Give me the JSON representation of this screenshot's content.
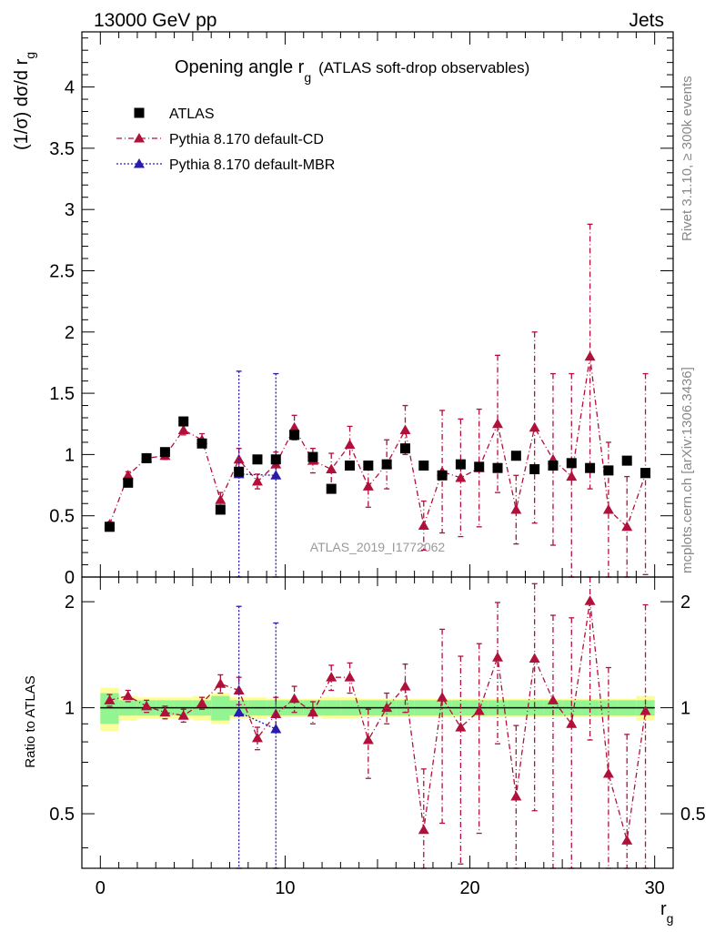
{
  "header": {
    "left": "13000 GeV pp",
    "right": "Jets"
  },
  "side_labels": {
    "rivet": "Rivet 3.1.10, ≥ 300k events",
    "mcplots": "mcplots.cern.ch [arXiv:1306.3436]"
  },
  "chart_data": [
    {
      "type": "scatter",
      "panel": "main",
      "title_main": "Opening angle r",
      "title_sub": "g",
      "title_extra": "(ATLAS soft-drop observables)",
      "ylabel_main": "(1/σ) dσ/d r",
      "ylabel_sub": "g",
      "watermark": "ATLAS_2019_I1772062",
      "xlim": [
        -1,
        31
      ],
      "ylim": [
        0,
        4.45
      ],
      "yticks": [
        0,
        0.5,
        1,
        1.5,
        2,
        2.5,
        3,
        3.5,
        4
      ],
      "ytick_labels": [
        "0",
        "0.5",
        "1",
        "1.5",
        "2",
        "2.5",
        "3",
        "3.5",
        "4"
      ],
      "legend": [
        {
          "label": "ATLAS",
          "marker": "square",
          "color": "#000000"
        },
        {
          "label": "Pythia 8.170 default-CD",
          "marker": "triangle",
          "color": "#b0103a"
        },
        {
          "label": "Pythia 8.170 default-MBR",
          "marker": "triangle",
          "color": "#2a1ab0"
        }
      ],
      "x": [
        0.5,
        1.5,
        2.5,
        3.5,
        4.5,
        5.5,
        6.5,
        7.5,
        8.5,
        9.5,
        10.5,
        11.5,
        12.5,
        13.5,
        14.5,
        15.5,
        16.5,
        17.5,
        18.5,
        19.5,
        20.5,
        21.5,
        22.5,
        23.5,
        24.5,
        25.5,
        26.5,
        27.5,
        28.5,
        29.5
      ],
      "series": [
        {
          "name": "ATLAS",
          "values": [
            0.41,
            0.77,
            0.97,
            1.02,
            1.27,
            1.09,
            0.55,
            0.86,
            0.96,
            0.96,
            1.16,
            0.98,
            0.72,
            0.91,
            0.91,
            0.92,
            1.05,
            0.91,
            0.83,
            0.92,
            0.9,
            0.89,
            0.99,
            0.88,
            0.91,
            0.93,
            0.89,
            0.87,
            0.95,
            0.85
          ]
        },
        {
          "name": "Pythia 8.170 default-CD",
          "values": [
            0.43,
            0.83,
            0.97,
            0.99,
            1.2,
            1.12,
            0.63,
            0.96,
            0.78,
            0.92,
            1.22,
            0.95,
            0.88,
            1.08,
            0.74,
            0.92,
            1.2,
            0.42,
            0.86,
            0.81,
            0.89,
            1.25,
            0.55,
            1.22,
            0.96,
            0.82,
            1.8,
            0.55,
            0.41,
            0.84
          ],
          "errors": [
            0.02,
            0.03,
            0.03,
            0.03,
            0.04,
            0.05,
            0.06,
            0.09,
            0.06,
            0.1,
            0.1,
            0.1,
            0.13,
            0.15,
            0.17,
            0.2,
            0.2,
            0.2,
            0.5,
            0.48,
            0.48,
            0.56,
            0.28,
            0.78,
            0.7,
            0.84,
            1.08,
            0.55,
            0.41,
            0.82
          ]
        },
        {
          "name": "Pythia 8.170 default-MBR",
          "x": [
            7.5,
            9.5
          ],
          "values": [
            0.84,
            0.83
          ],
          "errors": [
            0.84,
            0.83
          ]
        }
      ]
    },
    {
      "type": "scatter",
      "panel": "ratio",
      "ylabel": "Ratio to ATLAS",
      "xlabel_main": "r",
      "xlabel_sub": "g",
      "xlim": [
        -1,
        31
      ],
      "ylim": [
        0.35,
        2.35
      ],
      "xticks": [
        0,
        10,
        20,
        30
      ],
      "xtick_labels": [
        "0",
        "10",
        "20",
        "30"
      ],
      "yticks": [
        0.5,
        1,
        2
      ],
      "ytick_labels": [
        "0.5",
        "1",
        "2"
      ],
      "band_inner": [
        0.1,
        0.05,
        0.05,
        0.05,
        0.05,
        0.05,
        0.08,
        0.05,
        0.05,
        0.05,
        0.05,
        0.05,
        0.05,
        0.05,
        0.05,
        0.05,
        0.05,
        0.05,
        0.05,
        0.05,
        0.05,
        0.05,
        0.05,
        0.05,
        0.05,
        0.05,
        0.05,
        0.05,
        0.05,
        0.05
      ],
      "band_outer": [
        0.14,
        0.08,
        0.07,
        0.07,
        0.07,
        0.08,
        0.1,
        0.07,
        0.07,
        0.06,
        0.06,
        0.06,
        0.07,
        0.07,
        0.06,
        0.06,
        0.06,
        0.06,
        0.06,
        0.06,
        0.06,
        0.06,
        0.06,
        0.06,
        0.06,
        0.06,
        0.06,
        0.06,
        0.06,
        0.08
      ],
      "series": [
        {
          "name": "Pythia 8.170 default-CD",
          "values": [
            1.05,
            1.08,
            1.01,
            0.97,
            0.95,
            1.03,
            1.17,
            1.12,
            0.82,
            0.96,
            1.06,
            0.97,
            1.22,
            1.22,
            0.81,
            1.0,
            1.15,
            0.45,
            1.07,
            0.88,
            0.98,
            1.39,
            0.56,
            1.38,
            1.05,
            0.9,
            2.01,
            0.65,
            0.42,
            0.98
          ],
          "errors": [
            0.04,
            0.04,
            0.04,
            0.04,
            0.04,
            0.04,
            0.07,
            0.1,
            0.06,
            0.11,
            0.09,
            0.07,
            0.1,
            0.12,
            0.18,
            0.1,
            0.18,
            0.22,
            0.6,
            0.52,
            0.54,
            0.6,
            0.33,
            0.87,
            0.78,
            0.9,
            1.2,
            0.65,
            0.42,
            0.98
          ]
        },
        {
          "name": "Pythia 8.170 default-MBR",
          "x": [
            7.5,
            9.5
          ],
          "values": [
            0.97,
            0.87
          ],
          "errors": [
            0.97,
            0.87
          ]
        }
      ]
    }
  ]
}
